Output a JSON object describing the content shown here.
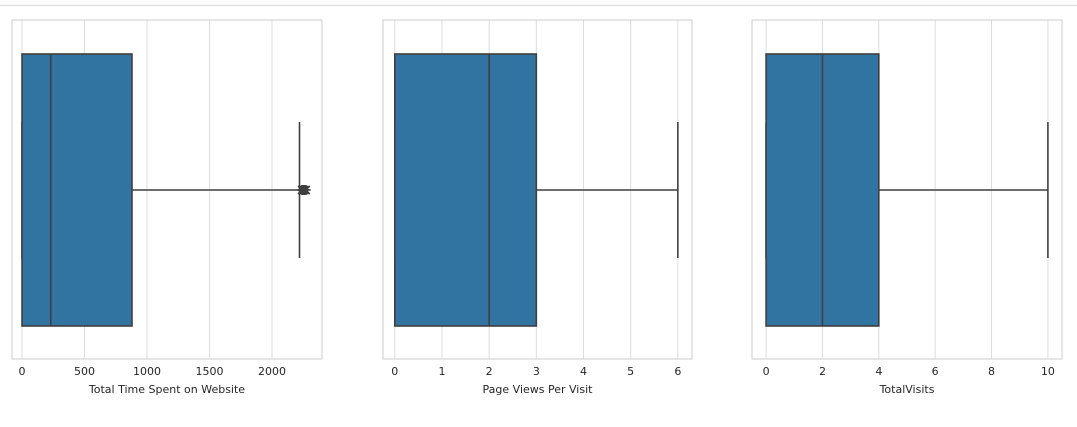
{
  "chart_data": [
    {
      "type": "box",
      "xlabel": "Total Time Spent on Website",
      "xlim": [
        -80,
        2400
      ],
      "xticks": [
        0,
        500,
        1000,
        1500,
        2000
      ],
      "tick_labels": [
        "0",
        "500",
        "1000",
        "1500",
        "2000"
      ],
      "box": {
        "whisker_low": 0,
        "q1": 0,
        "median": 230,
        "q3": 880,
        "whisker_high": 2220
      },
      "outliers": [
        2240,
        2250,
        2260,
        2270
      ],
      "grid": "vertical",
      "color": "#3274a1"
    },
    {
      "type": "box",
      "xlabel": "Page Views Per Visit",
      "xlim": [
        -0.25,
        6.3
      ],
      "xticks": [
        0,
        1,
        2,
        3,
        4,
        5,
        6
      ],
      "tick_labels": [
        "0",
        "1",
        "2",
        "3",
        "4",
        "5",
        "6"
      ],
      "box": {
        "whisker_low": 0,
        "q1": 0,
        "median": 2,
        "q3": 3,
        "whisker_high": 6
      },
      "outliers": [],
      "grid": "vertical",
      "color": "#3274a1"
    },
    {
      "type": "box",
      "xlabel": "TotalVisits",
      "xlim": [
        -0.5,
        10.5
      ],
      "xticks": [
        0,
        2,
        4,
        6,
        8,
        10
      ],
      "tick_labels": [
        "0",
        "2",
        "4",
        "6",
        "8",
        "10"
      ],
      "box": {
        "whisker_low": 0,
        "q1": 0,
        "median": 2,
        "q3": 4,
        "whisker_high": 10
      },
      "outliers": [],
      "grid": "vertical",
      "color": "#3274a1"
    }
  ]
}
